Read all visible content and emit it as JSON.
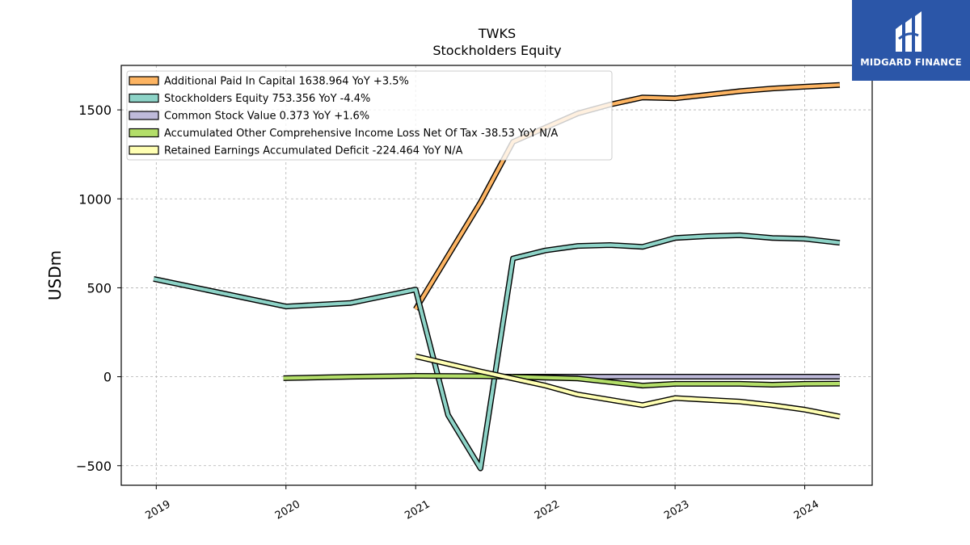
{
  "brand": {
    "name": "MIDGARD FINANCE",
    "color": "#2b56a8"
  },
  "chart_data": {
    "type": "line",
    "title": "TWKS",
    "subtitle": "Stockholders  Equity",
    "ylabel": "USDm",
    "xlabel": "",
    "ylim": [
      -610,
      1750
    ],
    "xlim": [
      2018.73,
      2024.52
    ],
    "x_ticks": [
      2019,
      2020,
      2021,
      2022,
      2023,
      2024
    ],
    "x_tick_labels": [
      "2019",
      "2020",
      "2021",
      "2022",
      "2023",
      "2024"
    ],
    "y_ticks": [
      -500,
      0,
      500,
      1000,
      1500
    ],
    "y_tick_labels": [
      "−500",
      "0",
      "500",
      "1000",
      "1500"
    ],
    "grid": true,
    "legend_position": "top-left",
    "series": [
      {
        "name": "Additional Paid In Capital  1638.964 YoY +3.5%",
        "color": "#fdb462",
        "x": [
          2021.0,
          2021.5,
          2021.75,
          2022.0,
          2022.25,
          2022.5,
          2022.75,
          2023.0,
          2023.25,
          2023.5,
          2023.75,
          2024.0,
          2024.27
        ],
        "y": [
          380,
          980,
          1320,
          1400,
          1480,
          1530,
          1570,
          1565,
          1585,
          1605,
          1620,
          1630,
          1640
        ]
      },
      {
        "name": "Stockholders Equity  753.356 YoY -4.4%",
        "color": "#8dd3c7",
        "x": [
          2018.98,
          2020.0,
          2020.5,
          2021.0,
          2021.25,
          2021.5,
          2021.75,
          2022.0,
          2022.25,
          2022.5,
          2022.75,
          2023.0,
          2023.25,
          2023.5,
          2023.75,
          2024.0,
          2024.27
        ],
        "y": [
          550,
          395,
          415,
          490,
          -215,
          -515,
          665,
          710,
          735,
          740,
          730,
          780,
          790,
          795,
          780,
          775,
          753
        ]
      },
      {
        "name": "Common Stock Value  0.373 YoY +1.6%",
        "color": "#bebada",
        "x": [
          2021.75,
          2022.0,
          2022.5,
          2023.0,
          2023.5,
          2024.0,
          2024.27
        ],
        "y": [
          0.35,
          0.36,
          0.36,
          0.37,
          0.37,
          0.37,
          0.373
        ]
      },
      {
        "name": "Accumulated Other Comprehensive Income Loss Net Of Tax  -38.53 YoY N/A",
        "color": "#b3de69",
        "x": [
          2019.98,
          2020.5,
          2021.0,
          2021.5,
          2021.75,
          2022.0,
          2022.25,
          2022.5,
          2022.75,
          2023.0,
          2023.25,
          2023.5,
          2023.75,
          2024.0,
          2024.27
        ],
        "y": [
          -8,
          0,
          5,
          3,
          0,
          -5,
          -10,
          -30,
          -50,
          -40,
          -40,
          -40,
          -45,
          -40,
          -38.5
        ]
      },
      {
        "name": "Retained Earnings Accumulated Deficit  -224.464 YoY N/A",
        "color": "#ffffb3",
        "x": [
          2021.0,
          2021.5,
          2021.75,
          2022.0,
          2022.25,
          2022.5,
          2022.75,
          2023.0,
          2023.25,
          2023.5,
          2023.75,
          2024.0,
          2024.27
        ],
        "y": [
          115,
          30,
          -10,
          -50,
          -100,
          -130,
          -160,
          -120,
          -130,
          -140,
          -160,
          -185,
          -224
        ]
      }
    ]
  }
}
